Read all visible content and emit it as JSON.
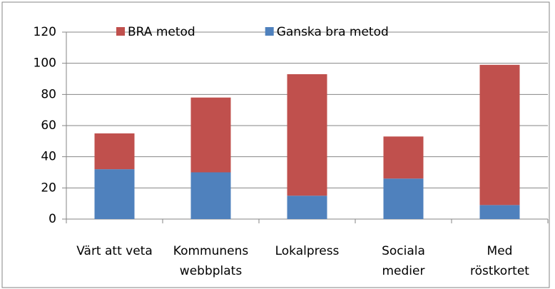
{
  "chart_data": {
    "type": "stacked_bar",
    "categories": [
      [
        "Värt att veta"
      ],
      [
        "Kommunens",
        "webbplats"
      ],
      [
        "Lokalpress"
      ],
      [
        "Sociala",
        "medier"
      ],
      [
        "Med",
        "röstkortet"
      ]
    ],
    "series": [
      {
        "name": "Ganska bra metod",
        "color": "#4f81bd",
        "values": [
          32,
          30,
          15,
          26,
          9
        ]
      },
      {
        "name": "BRA metod",
        "color": "#c0504d",
        "values": [
          23,
          48,
          78,
          27,
          90
        ]
      }
    ],
    "ylim": [
      0,
      120
    ],
    "yticks": [
      0,
      20,
      40,
      60,
      80,
      100,
      120
    ],
    "grid": true,
    "legend": "top"
  }
}
